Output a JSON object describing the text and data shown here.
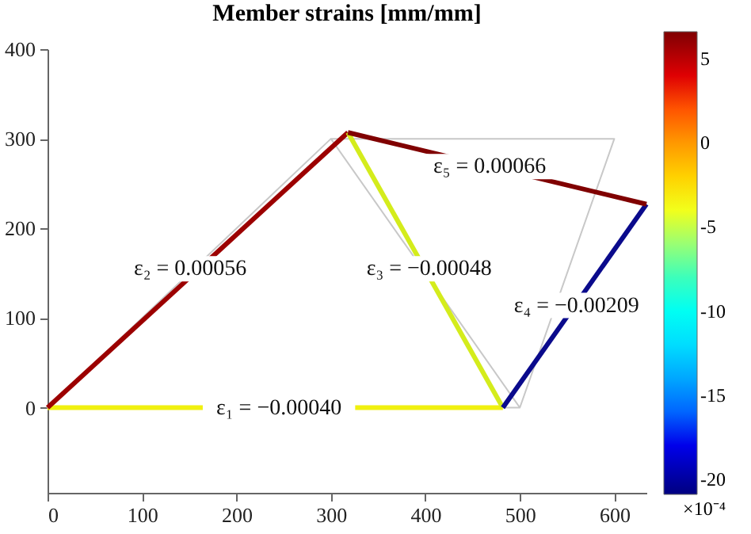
{
  "chart_data": {
    "type": "line",
    "title": "Member strains [mm/mm]",
    "series": [
      {
        "color": "#c8c8c8",
        "x": [
          300,
          0,
          500,
          300,
          600,
          500
        ],
        "values": [
          300,
          0,
          0,
          300,
          300,
          0
        ]
      },
      {
        "color": "#f0f00f",
        "x": [
          0,
          482
        ],
        "values": [
          0,
          0
        ]
      },
      {
        "color": "#9c0000",
        "x": [
          0,
          318
        ],
        "values": [
          0,
          307
        ]
      },
      {
        "color": "#d4ec1c",
        "x": [
          318,
          482
        ],
        "values": [
          307,
          0
        ]
      },
      {
        "color": "#0a0a8c",
        "x": [
          482,
          634
        ],
        "values": [
          0,
          227
        ]
      },
      {
        "color": "#800000",
        "x": [
          318,
          634
        ],
        "values": [
          307,
          227
        ]
      }
    ],
    "annotations": [
      {
        "text": "ε₁ = −0.00040",
        "x": 245,
        "y": 0
      },
      {
        "text": "ε₂ = 0.00056",
        "x": 151,
        "y": 155
      },
      {
        "text": "ε₃ = −0.00048",
        "x": 404,
        "y": 155
      },
      {
        "text": "ε₄ = −0.00209",
        "x": 560,
        "y": 114
      },
      {
        "text": "ε₅ = 0.00066",
        "x": 468,
        "y": 269
      }
    ],
    "xlim": [
      0,
      634
    ],
    "xticks": [
      0,
      100,
      200,
      300,
      400,
      500,
      600
    ],
    "ylim": [
      -95,
      400
    ],
    "yticks": [
      0,
      100,
      200,
      300,
      400
    ],
    "grid": false,
    "clabel": "×10⁻⁴",
    "clim": [
      -20.9,
      6.6
    ],
    "cticks": [
      5,
      0,
      -5,
      -10,
      -15,
      -20
    ]
  }
}
